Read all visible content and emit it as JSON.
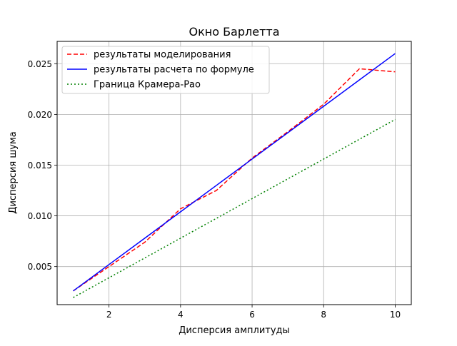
{
  "chart_data": {
    "type": "line",
    "title": "Окно Барлетта",
    "xlabel": "Дисперсия амплитуды",
    "ylabel": "Дисперсия шума",
    "xlim": [
      0.55,
      10.45
    ],
    "ylim": [
      0.00125,
      0.0272
    ],
    "xticks": [
      2,
      4,
      6,
      8,
      10
    ],
    "xtick_labels": [
      "2",
      "4",
      "6",
      "8",
      "10"
    ],
    "yticks": [
      0.005,
      0.01,
      0.015,
      0.02,
      0.025
    ],
    "ytick_labels": [
      "0.005",
      "0.010",
      "0.015",
      "0.020",
      "0.025"
    ],
    "grid": true,
    "legend_position": "upper-left",
    "x": [
      1,
      2,
      3,
      4,
      5,
      6,
      7,
      8,
      9,
      10
    ],
    "series": [
      {
        "name": "результаты моделирования",
        "color": "#ff0000",
        "style": "dashed",
        "values": [
          0.0026,
          0.005,
          0.0074,
          0.0107,
          0.0125,
          0.0157,
          0.0183,
          0.021,
          0.0245,
          0.0242
        ]
      },
      {
        "name": "результаты расчета по формуле",
        "color": "#0000ff",
        "style": "solid",
        "values": [
          0.0026,
          0.0052,
          0.0078,
          0.0104,
          0.013,
          0.0156,
          0.0182,
          0.0208,
          0.0234,
          0.026
        ]
      },
      {
        "name": "Граница Крамера-Рао",
        "color": "#008000",
        "style": "dotted",
        "values": [
          0.00195,
          0.0039,
          0.00585,
          0.0078,
          0.00975,
          0.0117,
          0.01365,
          0.0156,
          0.01755,
          0.0195
        ]
      }
    ]
  }
}
